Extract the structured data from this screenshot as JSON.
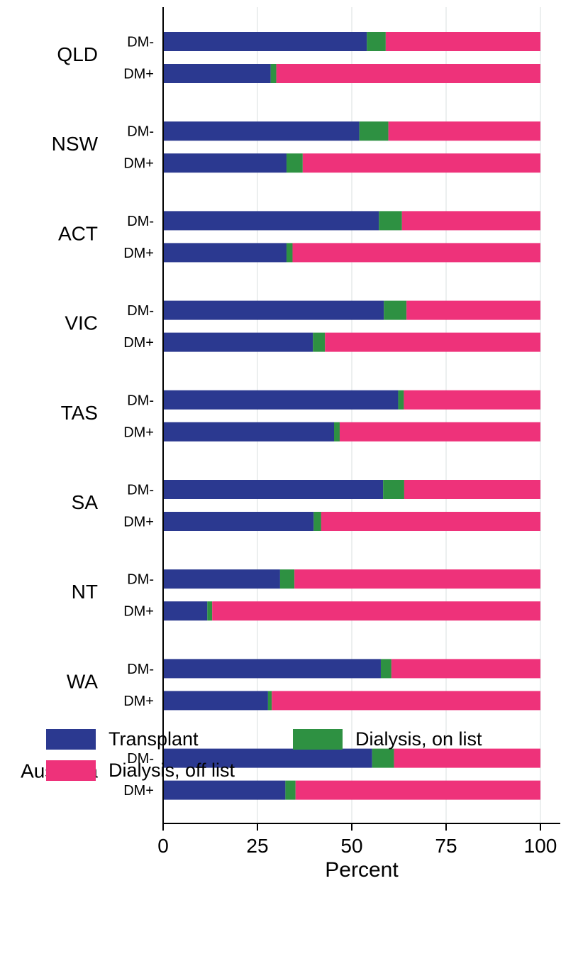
{
  "chart_data": {
    "type": "bar",
    "orientation": "horizontal",
    "stacked": true,
    "xlabel": "Percent",
    "xlim": [
      0,
      100
    ],
    "xticks": [
      0,
      25,
      50,
      75,
      100
    ],
    "grid": true,
    "legend_position": "bottom",
    "groups": [
      {
        "name": "QLD",
        "bars": [
          {
            "label": "DM-",
            "values": [
              54,
              5,
              41
            ]
          },
          {
            "label": "DM+",
            "values": [
              28.5,
              1.5,
              70
            ]
          }
        ]
      },
      {
        "name": "NSW",
        "bars": [
          {
            "label": "DM-",
            "values": [
              52,
              7.7,
              40.3
            ]
          },
          {
            "label": "DM+",
            "values": [
              32.7,
              4.3,
              63
            ]
          }
        ]
      },
      {
        "name": "ACT",
        "bars": [
          {
            "label": "DM-",
            "values": [
              57.2,
              6.1,
              36.7
            ]
          },
          {
            "label": "DM+",
            "values": [
              32.7,
              1.6,
              65.7
            ]
          }
        ]
      },
      {
        "name": "VIC",
        "bars": [
          {
            "label": "DM-",
            "values": [
              58.5,
              6,
              35.5
            ]
          },
          {
            "label": "DM+",
            "values": [
              39.7,
              3.2,
              57.1
            ]
          }
        ]
      },
      {
        "name": "TAS",
        "bars": [
          {
            "label": "DM-",
            "values": [
              62.3,
              1.5,
              36.2
            ]
          },
          {
            "label": "DM+",
            "values": [
              45.3,
              1.5,
              53.2
            ]
          }
        ]
      },
      {
        "name": "SA",
        "bars": [
          {
            "label": "DM-",
            "values": [
              58.3,
              5.6,
              36.1
            ]
          },
          {
            "label": "DM+",
            "values": [
              39.9,
              2,
              58.1
            ]
          }
        ]
      },
      {
        "name": "NT",
        "bars": [
          {
            "label": "DM-",
            "values": [
              31,
              3.8,
              65.2
            ]
          },
          {
            "label": "DM+",
            "values": [
              11.7,
              1.3,
              87
            ]
          }
        ]
      },
      {
        "name": "WA",
        "bars": [
          {
            "label": "DM-",
            "values": [
              57.7,
              2.8,
              39.5
            ]
          },
          {
            "label": "DM+",
            "values": [
              27.8,
              1,
              71.2
            ]
          }
        ]
      },
      {
        "name": "Australia",
        "bars": [
          {
            "label": "DM-",
            "values": [
              55.4,
              5.8,
              38.8
            ]
          },
          {
            "label": "DM+",
            "values": [
              32.4,
              2.7,
              64.9
            ]
          }
        ]
      }
    ],
    "series": [
      {
        "name": "Transplant",
        "color": "#2b3990"
      },
      {
        "name": "Dialysis, on list",
        "color": "#2e9142"
      },
      {
        "name": "Dialysis, off list",
        "color": "#ee327a"
      }
    ]
  }
}
